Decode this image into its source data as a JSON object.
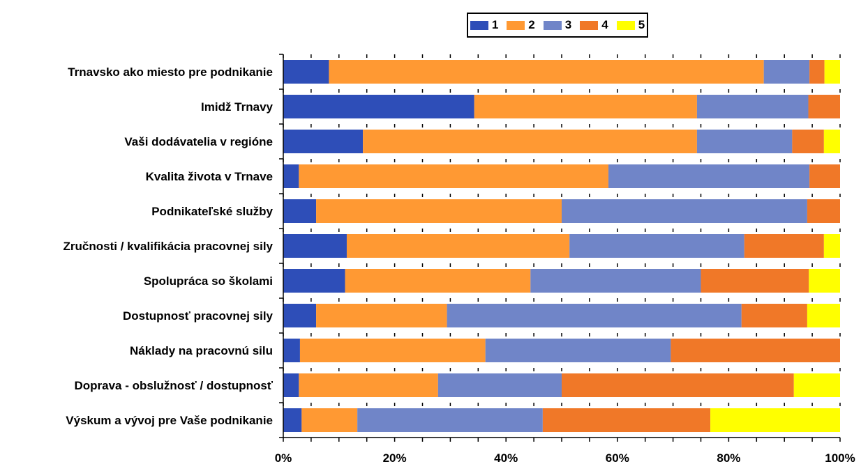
{
  "chart_data": {
    "type": "bar",
    "orientation": "horizontal",
    "stacked": "percent",
    "categories": [
      "Trnavsko ako miesto pre podnikanie",
      "Imidž Trnavy",
      "Vaši dodávatelia v regióne",
      "Kvalita života v Trnave",
      "Podnikateľské služby",
      "Zručnosti / kvalifikácia pracovnej sily",
      "Spolupráca so školami",
      "Dostupnosť pracovnej sily",
      "Náklady na pracovnú silu",
      "Doprava - obslužnosť / dostupnosť",
      "Výskum a vývoj pre Vaše podnikanie"
    ],
    "series": [
      {
        "name": "1",
        "color": "#2e4eb8",
        "values": [
          8.2,
          34.3,
          14.3,
          2.8,
          5.9,
          11.4,
          11.1,
          5.9,
          3.0,
          2.8,
          3.3
        ]
      },
      {
        "name": "2",
        "color": "#ff9933",
        "values": [
          78.1,
          40.0,
          60.0,
          55.6,
          44.1,
          40.0,
          33.3,
          23.5,
          33.3,
          25.0,
          10.0
        ]
      },
      {
        "name": "3",
        "color": "#7085c8",
        "values": [
          8.2,
          20.0,
          17.1,
          36.1,
          44.1,
          31.4,
          30.6,
          52.9,
          33.3,
          22.2,
          33.3
        ]
      },
      {
        "name": "4",
        "color": "#f07828",
        "values": [
          2.7,
          5.7,
          5.7,
          5.5,
          5.9,
          14.3,
          19.4,
          11.8,
          30.4,
          41.7,
          30.1
        ]
      },
      {
        "name": "5",
        "color": "#ffff00",
        "values": [
          2.8,
          0.0,
          2.9,
          0.0,
          0.0,
          2.9,
          5.6,
          5.9,
          0.0,
          8.3,
          23.3
        ]
      }
    ],
    "xlim": [
      0,
      100
    ],
    "xticks": [
      0,
      20,
      40,
      60,
      80,
      100
    ],
    "xtick_labels": [
      "0%",
      "20%",
      "40%",
      "60%",
      "80%",
      "100%"
    ],
    "grid": false,
    "legend_position": "top"
  }
}
